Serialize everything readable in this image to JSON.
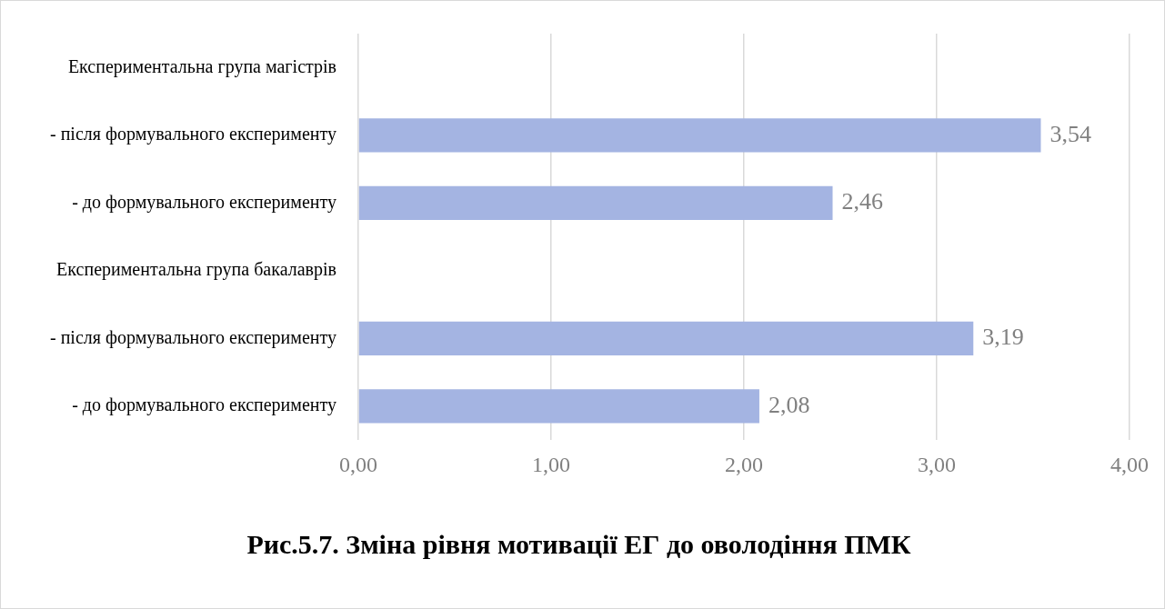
{
  "chart_data": {
    "type": "bar",
    "orientation": "horizontal",
    "title": "Рис.5.7. Зміна рівня мотивації ЕГ до оволодіння ПМК",
    "categories": [
      "Експериментальна група магістрів",
      "- після формувального експерименту",
      "- до формувального експерименту",
      "Експериментальна група бакалаврів",
      "- після формувального експерименту",
      "- до формувального експерименту"
    ],
    "values": [
      null,
      3.54,
      2.46,
      null,
      3.19,
      2.08
    ],
    "value_labels": [
      null,
      "3,54",
      "2,46",
      null,
      "3,19",
      "2,08"
    ],
    "color": "#a4b4e2",
    "xlim": [
      0,
      4
    ],
    "xticks": [
      {
        "value": 0,
        "label": "0,00"
      },
      {
        "value": 1,
        "label": "1,00"
      },
      {
        "value": 2,
        "label": "2,00"
      },
      {
        "value": 3,
        "label": "3,00"
      },
      {
        "value": 4,
        "label": "4,00"
      }
    ],
    "grid": "x",
    "legend": false
  }
}
